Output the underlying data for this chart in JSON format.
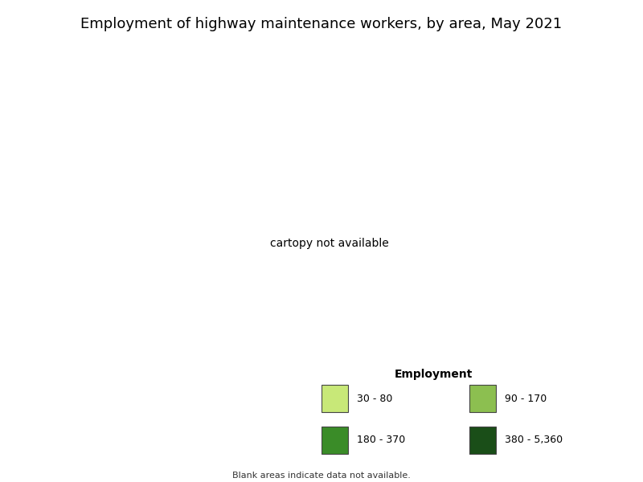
{
  "title": "Employment of highway maintenance workers, by area, May 2021",
  "legend_title": "Employment",
  "legend_entries": [
    {
      "label": "30 - 80",
      "color": "#c8e878"
    },
    {
      "label": "90 - 170",
      "color": "#8cbf50"
    },
    {
      "label": "180 - 370",
      "color": "#3a8c28"
    },
    {
      "label": "380 - 5,360",
      "color": "#1a4e18"
    }
  ],
  "no_data_color": "#ffffff",
  "background_color": "#ffffff",
  "footnote": "Blank areas indicate data not available.",
  "title_fontsize": 13,
  "legend_fontsize": 9,
  "legend_title_fontsize": 10,
  "footnote_fontsize": 8
}
